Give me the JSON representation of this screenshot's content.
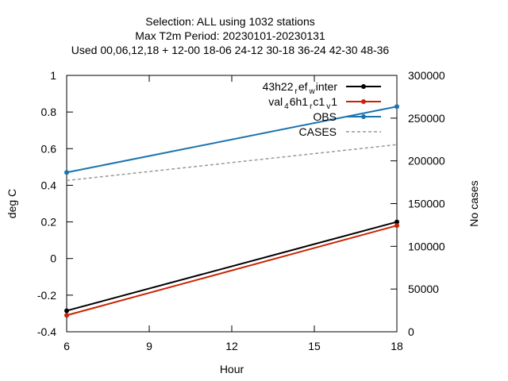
{
  "chart_data": {
    "type": "line",
    "title_lines": [
      "Selection: ALL using  1032 stations",
      "Max T2m    Period: 20230101-20230131",
      "Used  00,06,12,18  + 12-00  18-06  24-12  30-18  36-24  42-30  48-36"
    ],
    "xlabel": "Hour",
    "ylabel": "deg C",
    "y2label": "No cases",
    "xlim": [
      6,
      18
    ],
    "ylim": [
      -0.4,
      1
    ],
    "y2lim": [
      0,
      300000
    ],
    "xticks": [
      "6",
      "9",
      "12",
      "15",
      "18"
    ],
    "yticks": [
      "-0.4",
      "-0.2",
      "0",
      "0.2",
      "0.4",
      "0.6",
      "0.8",
      "1"
    ],
    "y2ticks": [
      "0",
      "50000",
      "100000",
      "150000",
      "200000",
      "250000",
      "300000"
    ],
    "grid": false,
    "legend_position": "top-right",
    "series": [
      {
        "name": "43h22_ref_winter",
        "legend_main": "43h22",
        "legend_sub1": "r",
        "legend_mid": "ef",
        "legend_sub2": "w",
        "legend_end": "inter",
        "axis": "y",
        "x": [
          6,
          18
        ],
        "values": [
          -0.285,
          0.2
        ],
        "color": "#000000",
        "marker": "point"
      },
      {
        "name": "val_46h1_rc1_v1",
        "legend_main": "val",
        "legend_sub1": "4",
        "legend_mid": "6h1",
        "legend_sub2": "r",
        "legend_mid2": "c1",
        "legend_sub3": "v",
        "legend_end": "1",
        "axis": "y",
        "x": [
          6,
          18
        ],
        "values": [
          -0.31,
          0.18
        ],
        "color": "#cc2200",
        "marker": "point"
      },
      {
        "name": "OBS",
        "axis": "y",
        "x": [
          6,
          18
        ],
        "values": [
          0.47,
          0.83
        ],
        "color": "#1a72b0",
        "marker": "point"
      },
      {
        "name": "CASES",
        "axis": "y2",
        "x": [
          6,
          18
        ],
        "values": [
          177000,
          219000
        ],
        "color": "#999999",
        "dashed": true
      }
    ]
  }
}
